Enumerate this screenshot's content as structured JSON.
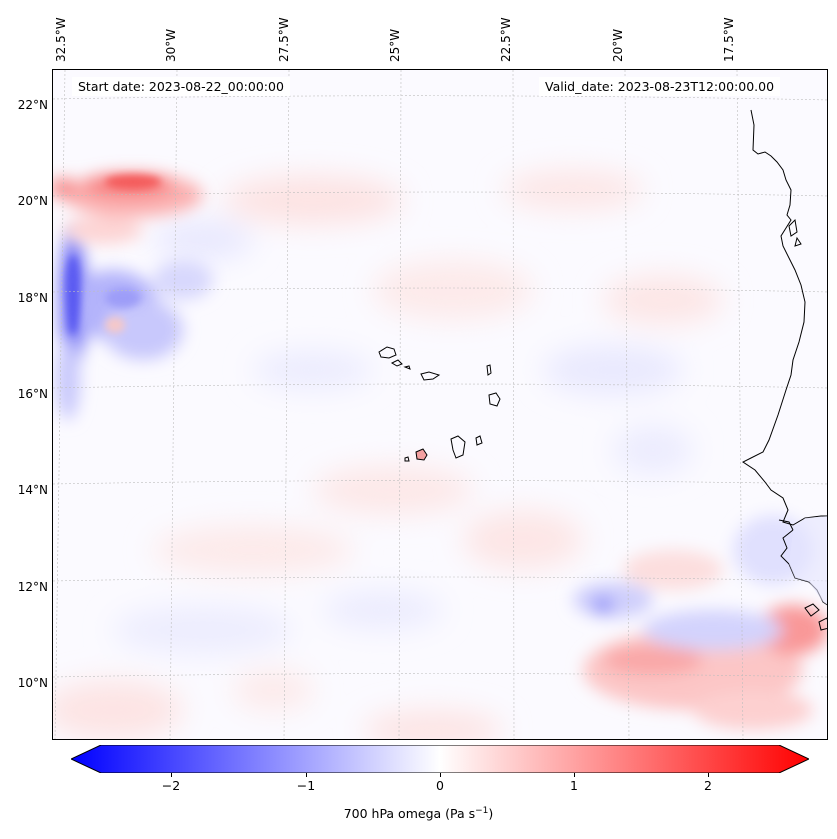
{
  "header": {
    "start_date": "Start date: 2023-08-22_00:00:00",
    "valid_date": "Valid_date: 2023-08-23T12:00:00.00"
  },
  "map": {
    "lon_labels": [
      "32.5°W",
      "30°W",
      "27.5°W",
      "25°W",
      "22.5°W",
      "20°W",
      "17.5°W"
    ],
    "lat_labels": [
      "22°N",
      "20°N",
      "18°N",
      "16°N",
      "14°N",
      "12°N",
      "10°N"
    ],
    "coastline_color": "#000000",
    "gridline_color": "#bbbbbb"
  },
  "colorbar": {
    "label_main": "700 hPa omega (Pa s",
    "label_sup": "−1",
    "label_end": ")",
    "ticks": [
      "−2",
      "−1",
      "0",
      "1",
      "2"
    ],
    "min_color": "#0000ff",
    "mid_color": "#ffffff",
    "max_color": "#ff0000"
  }
}
